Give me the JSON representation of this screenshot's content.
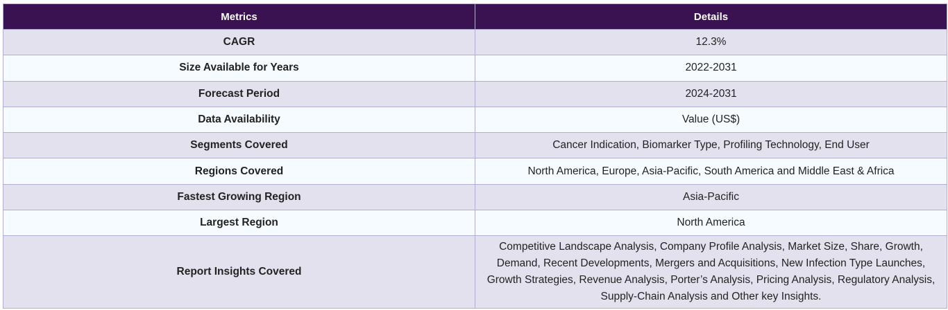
{
  "table": {
    "headers": {
      "metrics": "Metrics",
      "details": "Details"
    },
    "rows": [
      {
        "metric": "CAGR",
        "detail": "12.3%"
      },
      {
        "metric": "Size Available for Years",
        "detail": "2022-2031"
      },
      {
        "metric": "Forecast Period",
        "detail": "2024-2031"
      },
      {
        "metric": "Data Availability",
        "detail": "Value (US$)"
      },
      {
        "metric": "Segments Covered",
        "detail": "Cancer Indication, Biomarker Type, Profiling Technology, End User"
      },
      {
        "metric": "Regions Covered",
        "detail": "North America, Europe, Asia-Pacific, South America and Middle East & Africa"
      },
      {
        "metric": "Fastest Growing Region",
        "detail": "Asia-Pacific"
      },
      {
        "metric": "Largest Region",
        "detail": "North America"
      },
      {
        "metric": "Report Insights Covered",
        "detail": "Competitive Landscape Analysis, Company Profile Analysis, Market Size, Share, Growth, Demand, Recent Developments, Mergers and Acquisitions, New Infection Type Launches, Growth Strategies, Revenue Analysis, Porter’s Analysis, Pricing Analysis, Regulatory Analysis, Supply-Chain Analysis and Other key Insights."
      }
    ]
  },
  "colors": {
    "header_bg": "#3b1251",
    "header_text": "#ffffff",
    "row_shade": "#e3e1ed",
    "row_light": "#f5fbff",
    "border": "#b2aed3"
  }
}
